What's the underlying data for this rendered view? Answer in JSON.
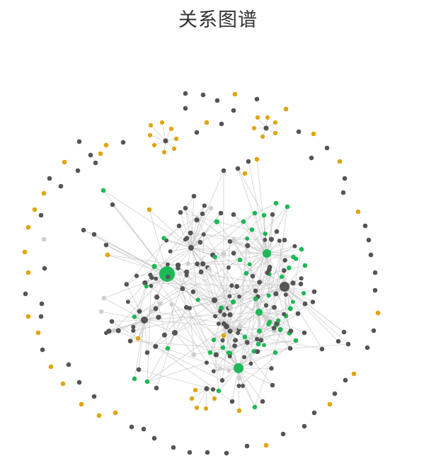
{
  "title": "关系图谱",
  "colors": {
    "dark": "#555555",
    "gold": "#e2a40c",
    "green": "#1cb954",
    "light": "#cfcfcf",
    "edge": "#c8c8c8"
  }
}
